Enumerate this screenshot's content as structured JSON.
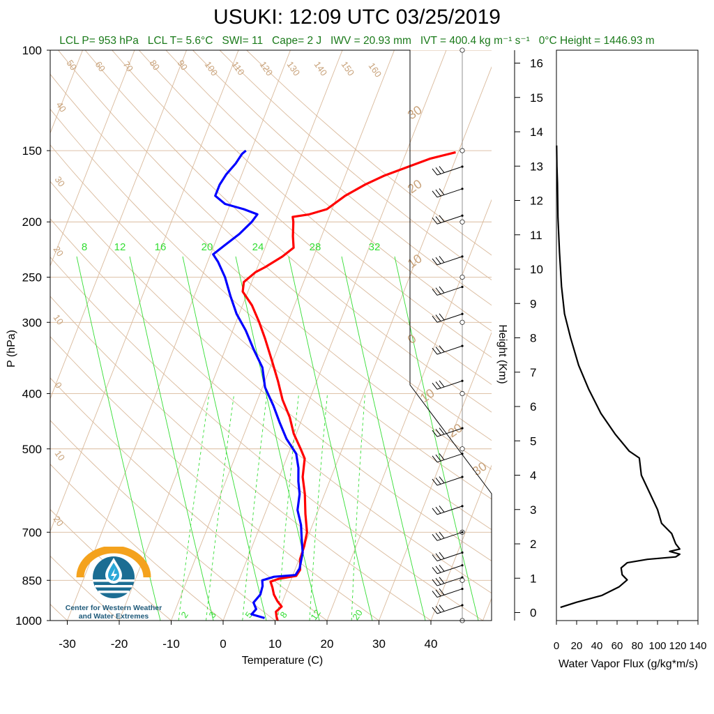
{
  "header": {
    "title": "USUKI: 12:09 UTC 03/25/2019",
    "stats": {
      "lcl_p": "LCL P= 953 hPa",
      "lcl_t": "LCL T= 5.6°C",
      "swi": "SWI= 11",
      "cape": "Cape= 2 J",
      "iwv": "IWV = 20.93 mm",
      "ivt": "IVT = 400.4 kg m⁻¹ s⁻¹",
      "freezing": "0°C Height = 1446.93 m"
    }
  },
  "logo": {
    "caption_line1": "Center for Western Weather",
    "caption_line2": "and Water Extremes",
    "icon": "water-drop-sun-logo"
  },
  "colors": {
    "temperature": "#ff0000",
    "dewpoint": "#0000ff",
    "dry_adiabat": "#d9b99b",
    "mixing_ratio": "#33dd33",
    "label_tan": "#c8a27a",
    "wvf": "#000000"
  },
  "chart_data": [
    {
      "type": "line",
      "title": "",
      "xlabel": "Temperature (C)",
      "ylabel": "P (hPa)",
      "xlim": [
        -35,
        50
      ],
      "ylim": [
        1000,
        100
      ],
      "log_scale": "y",
      "grid": true,
      "x_ticks": [
        -30,
        -20,
        -10,
        0,
        10,
        20,
        30,
        40
      ],
      "x_tick_labels": [
        "-30",
        "-20",
        "-10",
        "0",
        "10",
        "20",
        "30",
        "40"
      ],
      "y_ticks": [
        100,
        150,
        200,
        250,
        300,
        400,
        500,
        700,
        850,
        1000
      ],
      "y_tick_labels": [
        "100",
        "150",
        "200",
        "250",
        "300",
        "400",
        "500",
        "700",
        "850",
        "1000"
      ],
      "isotherm_labels": [
        {
          "label": "50",
          "t": 50
        },
        {
          "label": "60",
          "t": 60
        },
        {
          "label": "70",
          "t": 70
        },
        {
          "label": "80",
          "t": 80
        },
        {
          "label": "90",
          "t": 90
        },
        {
          "label": "100",
          "t": 100
        },
        {
          "label": "110",
          "t": 110
        },
        {
          "label": "120",
          "t": 120
        },
        {
          "label": "130",
          "t": 130
        },
        {
          "label": "140",
          "t": 140
        },
        {
          "label": "150",
          "t": 150
        },
        {
          "label": "160",
          "t": 160
        },
        {
          "label": "40",
          "t": 40
        },
        {
          "label": "30",
          "t": 30
        },
        {
          "label": "20",
          "t": 20
        },
        {
          "label": "10",
          "t": 10
        },
        {
          "label": "0",
          "t": 0
        },
        {
          "label": "10",
          "t": -10
        },
        {
          "label": "20",
          "t": -20
        }
      ],
      "right_angle_labels": [
        "30",
        "20",
        "10",
        "0",
        "10",
        "20",
        "30"
      ],
      "mixing_ratio_upper_labels": [
        "8",
        "12",
        "16",
        "20",
        "24",
        "28",
        "32"
      ],
      "mixing_ratio_lower_labels": [
        "2",
        "3",
        "5",
        "8",
        "12",
        "20"
      ],
      "series": [
        {
          "name": "Temperature",
          "points": [
            {
              "p": 1000,
              "t": 10.5
            },
            {
              "p": 985,
              "t": 10.0
            },
            {
              "p": 965,
              "t": 9.5
            },
            {
              "p": 945,
              "t": 10.2
            },
            {
              "p": 925,
              "t": 9.0
            },
            {
              "p": 900,
              "t": 7.8
            },
            {
              "p": 875,
              "t": 7.0
            },
            {
              "p": 855,
              "t": 6.2
            },
            {
              "p": 845,
              "t": 7.5
            },
            {
              "p": 835,
              "t": 10.7
            },
            {
              "p": 815,
              "t": 11.0
            },
            {
              "p": 780,
              "t": 10.2
            },
            {
              "p": 740,
              "t": 10.0
            },
            {
              "p": 700,
              "t": 9.5
            },
            {
              "p": 650,
              "t": 7.8
            },
            {
              "p": 600,
              "t": 6.2
            },
            {
              "p": 560,
              "t": 4.5
            },
            {
              "p": 520,
              "t": 3.5
            },
            {
              "p": 500,
              "t": 2.0
            },
            {
              "p": 470,
              "t": -0.5
            },
            {
              "p": 440,
              "t": -2.5
            },
            {
              "p": 410,
              "t": -5.2
            },
            {
              "p": 380,
              "t": -7.5
            },
            {
              "p": 350,
              "t": -10.2
            },
            {
              "p": 320,
              "t": -13.2
            },
            {
              "p": 300,
              "t": -15.5
            },
            {
              "p": 280,
              "t": -18.2
            },
            {
              "p": 265,
              "t": -21.0
            },
            {
              "p": 255,
              "t": -21.5
            },
            {
              "p": 245,
              "t": -20.0
            },
            {
              "p": 240,
              "t": -18.5
            },
            {
              "p": 230,
              "t": -16.0
            },
            {
              "p": 222,
              "t": -14.5
            },
            {
              "p": 212,
              "t": -15.5
            },
            {
              "p": 200,
              "t": -16.5
            },
            {
              "p": 196,
              "t": -17.0
            },
            {
              "p": 194,
              "t": -14.0
            },
            {
              "p": 190,
              "t": -11.0
            },
            {
              "p": 180,
              "t": -8.5
            },
            {
              "p": 172,
              "t": -5.5
            },
            {
              "p": 166,
              "t": -2.5
            },
            {
              "p": 160,
              "t": 1.5
            },
            {
              "p": 155,
              "t": 5.0
            },
            {
              "p": 151,
              "t": 9.5
            }
          ]
        },
        {
          "name": "Dewpoint",
          "points": [
            {
              "p": 990,
              "t": 7.8
            },
            {
              "p": 975,
              "t": 5.0
            },
            {
              "p": 955,
              "t": 5.5
            },
            {
              "p": 930,
              "t": 4.5
            },
            {
              "p": 900,
              "t": 5.2
            },
            {
              "p": 870,
              "t": 5.0
            },
            {
              "p": 850,
              "t": 4.5
            },
            {
              "p": 838,
              "t": 6.5
            },
            {
              "p": 832,
              "t": 10.5
            },
            {
              "p": 810,
              "t": 10.8
            },
            {
              "p": 760,
              "t": 10.2
            },
            {
              "p": 720,
              "t": 9.0
            },
            {
              "p": 680,
              "t": 7.8
            },
            {
              "p": 640,
              "t": 6.0
            },
            {
              "p": 600,
              "t": 5.2
            },
            {
              "p": 570,
              "t": 4.0
            },
            {
              "p": 540,
              "t": 3.0
            },
            {
              "p": 510,
              "t": 1.5
            },
            {
              "p": 480,
              "t": -1.5
            },
            {
              "p": 450,
              "t": -4.0
            },
            {
              "p": 420,
              "t": -6.5
            },
            {
              "p": 390,
              "t": -9.5
            },
            {
              "p": 360,
              "t": -11.5
            },
            {
              "p": 335,
              "t": -14.5
            },
            {
              "p": 310,
              "t": -17.5
            },
            {
              "p": 290,
              "t": -20.5
            },
            {
              "p": 270,
              "t": -23.0
            },
            {
              "p": 250,
              "t": -25.5
            },
            {
              "p": 235,
              "t": -28.0
            },
            {
              "p": 228,
              "t": -29.5
            },
            {
              "p": 220,
              "t": -28.0
            },
            {
              "p": 210,
              "t": -26.0
            },
            {
              "p": 200,
              "t": -24.5
            },
            {
              "p": 194,
              "t": -24.0
            },
            {
              "p": 190,
              "t": -27.0
            },
            {
              "p": 186,
              "t": -31.0
            },
            {
              "p": 180,
              "t": -33.5
            },
            {
              "p": 172,
              "t": -33.5
            },
            {
              "p": 165,
              "t": -33.0
            },
            {
              "p": 158,
              "t": -32.0
            },
            {
              "p": 152,
              "t": -31.5
            },
            {
              "p": 150,
              "t": -31.0
            }
          ]
        }
      ],
      "wind_barb_levels_hpa": [
        160,
        175,
        195,
        230,
        260,
        290,
        330,
        380,
        460,
        510,
        560,
        630,
        700,
        760,
        800,
        840,
        880,
        940
      ]
    },
    {
      "type": "line",
      "title": "",
      "xlabel": "Water Vapor Flux (g/kg*m/s)",
      "ylabel": "Height (Km)",
      "xlim": [
        0,
        140
      ],
      "ylim": [
        0,
        16.5
      ],
      "x_ticks": [
        0,
        20,
        40,
        60,
        80,
        100,
        120,
        140
      ],
      "x_tick_labels": [
        "0",
        "20",
        "40",
        "60",
        "80",
        "100",
        "120",
        "140"
      ],
      "y_ticks": [
        0,
        1,
        2,
        3,
        4,
        5,
        6,
        7,
        8,
        9,
        10,
        11,
        12,
        13,
        14,
        15,
        16
      ],
      "y_tick_labels": [
        "0",
        "1",
        "2",
        "3",
        "4",
        "5",
        "6",
        "7",
        "8",
        "9",
        "10",
        "11",
        "12",
        "13",
        "14",
        "15",
        "16"
      ],
      "series": [
        {
          "name": "Water Vapor Flux",
          "points": [
            {
              "x": 4,
              "h": 0.15
            },
            {
              "x": 20,
              "h": 0.3
            },
            {
              "x": 45,
              "h": 0.5
            },
            {
              "x": 62,
              "h": 0.75
            },
            {
              "x": 70,
              "h": 0.95
            },
            {
              "x": 65,
              "h": 1.1
            },
            {
              "x": 64,
              "h": 1.3
            },
            {
              "x": 70,
              "h": 1.45
            },
            {
              "x": 90,
              "h": 1.55
            },
            {
              "x": 118,
              "h": 1.62
            },
            {
              "x": 122,
              "h": 1.7
            },
            {
              "x": 112,
              "h": 1.78
            },
            {
              "x": 122,
              "h": 1.85
            },
            {
              "x": 118,
              "h": 2.0
            },
            {
              "x": 114,
              "h": 2.3
            },
            {
              "x": 104,
              "h": 2.6
            },
            {
              "x": 100,
              "h": 3.0
            },
            {
              "x": 92,
              "h": 3.5
            },
            {
              "x": 84,
              "h": 4.0
            },
            {
              "x": 82,
              "h": 4.5
            },
            {
              "x": 72,
              "h": 4.7
            },
            {
              "x": 58,
              "h": 5.2
            },
            {
              "x": 44,
              "h": 5.8
            },
            {
              "x": 32,
              "h": 6.5
            },
            {
              "x": 22,
              "h": 7.2
            },
            {
              "x": 14,
              "h": 8.0
            },
            {
              "x": 8,
              "h": 8.7
            },
            {
              "x": 5,
              "h": 9.5
            },
            {
              "x": 3,
              "h": 10.5
            },
            {
              "x": 1.5,
              "h": 11.5
            },
            {
              "x": 1,
              "h": 12.5
            },
            {
              "x": 0.5,
              "h": 13.0
            },
            {
              "x": 0.2,
              "h": 13.6
            }
          ]
        }
      ]
    }
  ]
}
